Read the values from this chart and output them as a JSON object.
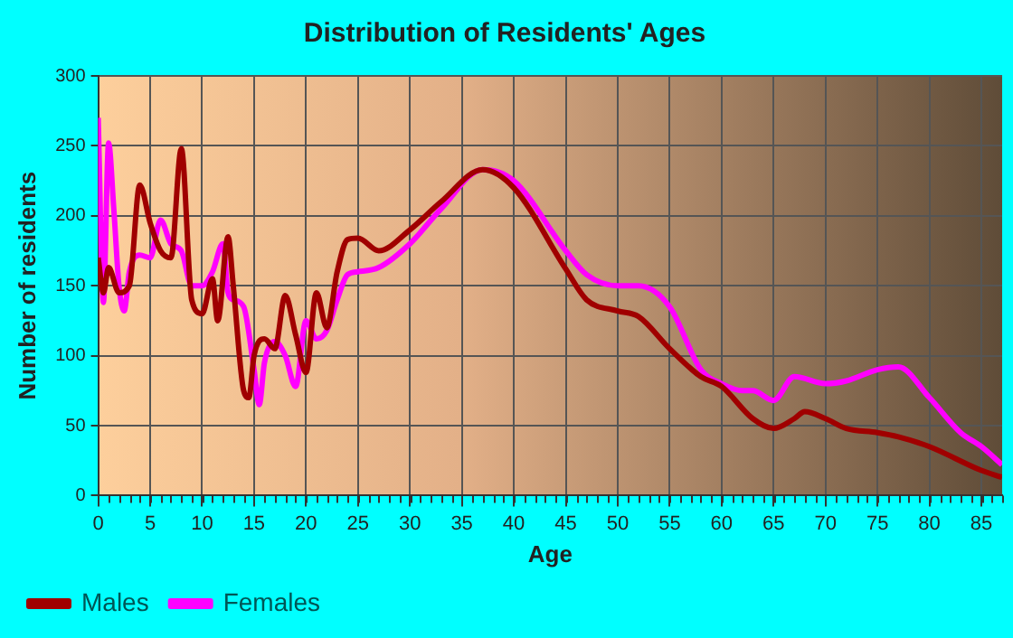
{
  "chart_data": {
    "type": "line",
    "title": "Distribution of Residents' Ages",
    "xlabel": "Age",
    "ylabel": "Number of residents",
    "xlim": [
      0,
      87
    ],
    "xticks": [
      0,
      5,
      10,
      15,
      20,
      25,
      30,
      35,
      40,
      45,
      50,
      55,
      60,
      65,
      70,
      75,
      80,
      85
    ],
    "ylim": [
      0,
      300
    ],
    "yticks": [
      0,
      50,
      100,
      150,
      200,
      250,
      300
    ],
    "grid": true,
    "legend": "bottom",
    "marker": "none",
    "line_style": "solid",
    "series": [
      {
        "name": "Males",
        "color": "#a00000",
        "x": [
          0,
          0.5,
          1,
          2,
          3,
          4,
          5,
          6,
          7,
          8,
          9,
          10,
          11,
          11.5,
          12.5,
          13,
          14,
          14.5,
          15,
          16,
          17,
          18,
          19,
          20,
          21,
          22,
          23,
          24,
          25,
          27,
          30,
          33,
          37,
          40,
          45,
          47,
          50,
          52,
          55,
          58,
          60,
          63,
          65,
          67,
          68,
          70,
          72,
          75,
          77,
          80,
          85,
          87
        ],
        "values": [
          170,
          145,
          163,
          145,
          150,
          222,
          195,
          175,
          170,
          248,
          140,
          130,
          155,
          125,
          185,
          150,
          75,
          70,
          100,
          112,
          105,
          143,
          115,
          88,
          145,
          120,
          160,
          183,
          184,
          175,
          190,
          210,
          233,
          220,
          162,
          140,
          132,
          128,
          105,
          85,
          78,
          55,
          48,
          55,
          60,
          55,
          48,
          45,
          42,
          35,
          18,
          13
        ]
      },
      {
        "name": "Females",
        "color": "#ff00ff",
        "x": [
          0,
          0.5,
          1,
          1.5,
          2,
          2.5,
          3,
          4,
          5,
          6,
          7,
          8,
          9,
          10,
          11,
          12,
          12.5,
          13,
          14,
          15,
          15.5,
          16,
          17,
          18,
          19,
          20,
          21,
          22,
          23,
          24,
          25,
          27,
          30,
          33,
          37,
          40,
          45,
          47,
          50,
          52,
          55,
          58,
          60,
          62,
          63,
          65,
          67,
          70,
          72,
          75,
          77,
          80,
          83,
          85,
          87
        ],
        "values": [
          270,
          138,
          252,
          205,
          150,
          132,
          160,
          172,
          170,
          197,
          180,
          175,
          150,
          150,
          160,
          180,
          145,
          140,
          135,
          90,
          65,
          95,
          110,
          100,
          78,
          125,
          112,
          118,
          140,
          158,
          160,
          163,
          180,
          205,
          233,
          225,
          175,
          158,
          150,
          150,
          135,
          90,
          80,
          75,
          75,
          68,
          85,
          80,
          82,
          90,
          92,
          70,
          45,
          35,
          22
        ]
      }
    ]
  }
}
